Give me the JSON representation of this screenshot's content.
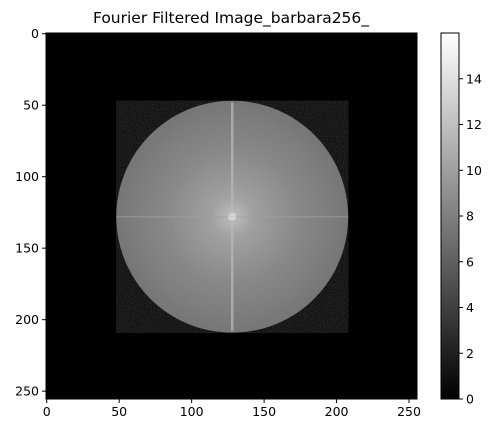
{
  "chart_data": {
    "type": "heatmap",
    "title": "Fourier Filtered Image_barbara256_",
    "colormap": "gray",
    "image": {
      "width": 256,
      "height": 256,
      "mask_shape": "circle",
      "mask_center": [
        128,
        128
      ],
      "mask_radius": 80,
      "outside_value": 0,
      "center_peak_value": 11,
      "edge_value": 7.5,
      "visible_features": [
        "bright center",
        "vertical line at x≈128",
        "faint horizontal line at y≈128"
      ]
    },
    "x_axis": {
      "ticks": [
        0,
        50,
        100,
        150,
        200,
        250
      ],
      "range": [
        0,
        255
      ],
      "label": ""
    },
    "y_axis": {
      "ticks": [
        0,
        50,
        100,
        150,
        200,
        250
      ],
      "range": [
        0,
        255
      ],
      "label": "",
      "inverted": true
    },
    "colorbar": {
      "ticks": [
        0,
        2,
        4,
        6,
        8,
        10,
        12,
        14
      ],
      "range": [
        0,
        16
      ]
    }
  }
}
